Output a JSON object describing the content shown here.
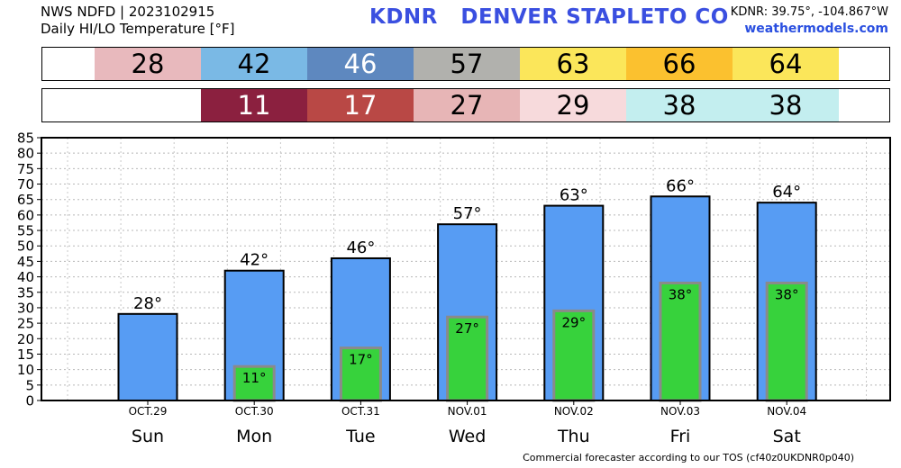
{
  "header": {
    "source": "NWS NDFD | 2023102915",
    "product": "Daily HI/LO Temperature [°F]",
    "title": "KDNR   DENVER STAPLETO CO",
    "coords": "KDNR: 39.75°, -104.867°W",
    "site": "weathermodels.com"
  },
  "hi_strip": [
    {
      "text": "28",
      "bg": "#e8b9bd",
      "fg": "#000000"
    },
    {
      "text": "42",
      "bg": "#7ab9e5",
      "fg": "#000000"
    },
    {
      "text": "46",
      "bg": "#5e88bf",
      "fg": "#ffffff"
    },
    {
      "text": "57",
      "bg": "#b1b1ad",
      "fg": "#000000"
    },
    {
      "text": "63",
      "bg": "#fbe65a",
      "fg": "#000000"
    },
    {
      "text": "66",
      "bg": "#fbc12f",
      "fg": "#000000"
    },
    {
      "text": "64",
      "bg": "#fbe65a",
      "fg": "#000000"
    }
  ],
  "lo_strip": [
    {
      "text": "",
      "bg": "#ffffff",
      "fg": "#000000"
    },
    {
      "text": "11",
      "bg": "#8b203f",
      "fg": "#ffffff"
    },
    {
      "text": "17",
      "bg": "#b94845",
      "fg": "#ffffff"
    },
    {
      "text": "27",
      "bg": "#e7b5b6",
      "fg": "#000000"
    },
    {
      "text": "29",
      "bg": "#f7dadc",
      "fg": "#000000"
    },
    {
      "text": "38",
      "bg": "#c3eeef",
      "fg": "#000000"
    },
    {
      "text": "38",
      "bg": "#c3eeef",
      "fg": "#000000"
    }
  ],
  "chart_data": {
    "type": "bar",
    "categories": [
      "Sun",
      "Mon",
      "Tue",
      "Wed",
      "Thu",
      "Fri",
      "Sat"
    ],
    "dates": [
      "OCT.29",
      "OCT.30",
      "OCT.31",
      "NOV.01",
      "NOV.02",
      "NOV.03",
      "NOV.04"
    ],
    "series": [
      {
        "values": [
          28,
          42,
          46,
          57,
          63,
          66,
          64
        ],
        "labels": [
          "28°",
          "42°",
          "46°",
          "57°",
          "63°",
          "66°",
          "64°"
        ],
        "color": "#579cf3"
      },
      {
        "values": [
          null,
          11,
          17,
          27,
          29,
          38,
          38
        ],
        "labels": [
          "",
          "11°",
          "17°",
          "27°",
          "29°",
          "38°",
          "38°"
        ],
        "color": "#37d23c"
      }
    ],
    "ylim": [
      0,
      85
    ],
    "yticks": [
      "0",
      "5",
      "10",
      "15",
      "20",
      "25",
      "30",
      "35",
      "40",
      "45",
      "50",
      "55",
      "60",
      "65",
      "70",
      "75",
      "80",
      "85"
    ],
    "grid": true,
    "colors": {
      "hi": "#579cf3",
      "lo": "#37d23c",
      "lo_border": "#8a8a8a",
      "background": "#ffffff"
    }
  },
  "footer": "Commercial forecaster according to our TOS (cf40z0UKDNR0p040)"
}
